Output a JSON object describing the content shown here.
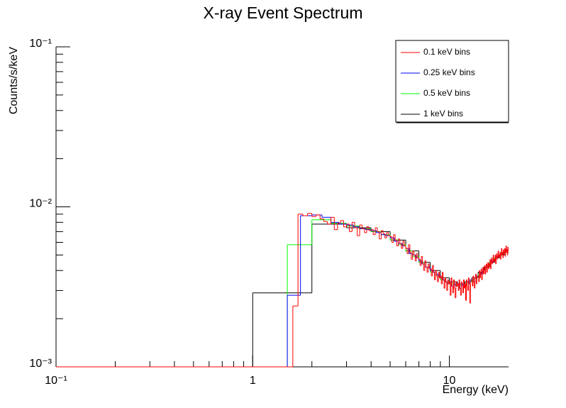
{
  "chart_data": {
    "type": "histogram",
    "title": "X-ray Event Spectrum",
    "x_label": "Energy (keV)",
    "y_label": "Counts/s/keV",
    "xlog": true,
    "ylog": true,
    "legend": "top-right",
    "xlim": [
      0.1,
      20
    ],
    "ylim": [
      0.001,
      0.1
    ],
    "xticks": [
      {
        "value": 0.1,
        "label": "10⁻¹"
      },
      1,
      10
    ],
    "yticks": [
      {
        "value": 0.001,
        "label": "10⁻³"
      },
      {
        "value": 0.01,
        "label": "10⁻²"
      },
      {
        "value": 0.1,
        "label": "10⁻¹"
      }
    ],
    "xminorticks": [
      0.2,
      0.3,
      0.4,
      0.5,
      0.6,
      0.7,
      0.8,
      0.9,
      2,
      3,
      4,
      5,
      6,
      7,
      8,
      9
    ],
    "yminorticks": [
      0.002,
      0.003,
      0.004,
      0.005,
      0.006,
      0.007,
      0.008,
      0.009,
      0.02,
      0.03,
      0.04,
      0.05,
      0.06,
      0.07,
      0.08,
      0.09
    ],
    "series": [
      {
        "name": "0.1 keV bins",
        "color": "#ff0000",
        "bins": [
          0.1,
          1.6,
          1.7,
          1.8,
          1.9,
          2.0,
          2.1,
          2.2,
          2.3,
          2.4,
          2.5,
          2.6,
          2.7,
          2.8,
          2.9,
          3.0,
          3.1,
          3.2,
          3.3,
          3.4,
          3.5,
          3.6,
          3.7,
          3.8,
          3.9,
          4.0,
          4.1,
          4.2,
          4.3,
          4.4,
          4.5,
          4.6,
          4.7,
          4.8,
          4.9,
          5.0,
          5.1,
          5.2,
          5.3,
          5.4,
          5.5,
          5.6,
          5.7,
          5.8,
          5.9,
          6.0,
          6.1,
          6.2,
          6.3,
          6.4,
          6.5,
          6.6,
          6.7,
          6.8,
          6.9,
          7.0,
          7.1,
          7.2,
          7.3,
          7.4,
          7.5,
          7.6,
          7.7,
          7.8,
          7.9,
          8.0,
          8.1,
          8.2,
          8.3,
          8.4,
          8.5,
          8.6,
          8.7,
          8.8,
          8.9,
          9.0,
          9.1,
          9.2,
          9.3,
          9.4,
          9.5,
          9.6,
          9.7,
          9.8,
          9.9,
          10.0,
          10.1,
          10.2,
          10.3,
          10.4,
          10.5,
          10.6,
          10.7,
          10.8,
          10.9,
          11.0,
          11.1,
          11.2,
          11.3,
          11.4,
          11.5,
          11.6,
          11.7,
          11.8,
          11.9,
          12.0,
          12.1,
          12.2,
          12.3,
          12.4,
          12.5,
          12.6,
          12.7,
          12.8,
          12.9,
          13.0,
          13.1,
          13.2,
          13.3,
          13.4,
          13.5,
          13.6,
          13.7,
          13.8,
          13.9,
          14.0,
          14.1,
          14.2,
          14.3,
          14.4,
          14.5,
          14.6,
          14.7,
          14.8,
          14.9,
          15.0,
          15.1,
          15.2,
          15.3,
          15.4,
          15.5,
          15.6,
          15.7,
          15.8,
          15.9,
          16.0,
          16.1,
          16.2,
          16.3,
          16.4,
          16.5,
          16.6,
          16.7,
          16.8,
          16.9,
          17.0,
          17.1,
          17.2,
          17.3,
          17.4,
          17.5,
          17.6,
          17.7,
          17.8,
          17.9,
          18.0,
          18.1,
          18.2,
          18.3,
          18.4,
          18.5,
          18.6,
          18.7,
          18.8,
          18.9,
          19.0,
          19.1,
          19.2,
          19.3,
          19.4,
          19.5,
          19.6,
          19.7,
          19.8,
          19.9,
          20.0
        ],
        "values": [
          0,
          0.0024,
          0.009,
          0.0088,
          0.0091,
          0.0087,
          0.0089,
          0.0084,
          0.0081,
          0.0078,
          0.0086,
          0.0072,
          0.0079,
          0.0082,
          0.0075,
          0.0078,
          0.007,
          0.008,
          0.0074,
          0.0066,
          0.0077,
          0.0073,
          0.0069,
          0.0075,
          0.0071,
          0.0072,
          0.0067,
          0.0074,
          0.007,
          0.0063,
          0.0071,
          0.0068,
          0.0064,
          0.0069,
          0.0066,
          0.0065,
          0.006,
          0.0067,
          0.0062,
          0.0057,
          0.0063,
          0.0059,
          0.0055,
          0.0061,
          0.0057,
          0.0055,
          0.0051,
          0.0058,
          0.0052,
          0.0047,
          0.0053,
          0.005,
          0.0046,
          0.0051,
          0.0048,
          0.0047,
          0.0043,
          0.0049,
          0.0044,
          0.004,
          0.0046,
          0.0042,
          0.0039,
          0.0044,
          0.0041,
          0.0041,
          0.0037,
          0.0043,
          0.0039,
          0.0035,
          0.004,
          0.0037,
          0.0034,
          0.0039,
          0.0036,
          0.0037,
          0.0033,
          0.0039,
          0.0035,
          0.0031,
          0.0036,
          0.0034,
          0.003,
          0.0035,
          0.0033,
          0.0034,
          0.0028,
          0.0036,
          0.0032,
          0.0029,
          0.0035,
          0.0031,
          0.0027,
          0.0034,
          0.0032,
          0.0033,
          0.003,
          0.0035,
          0.0031,
          0.0028,
          0.0034,
          0.0032,
          0.0029,
          0.0035,
          0.0031,
          0.0033,
          0.0026,
          0.0035,
          0.0032,
          0.003,
          0.0036,
          0.0033,
          0.0025,
          0.0034,
          0.0035,
          0.0035,
          0.0032,
          0.0037,
          0.0034,
          0.0031,
          0.0036,
          0.0038,
          0.0033,
          0.0036,
          0.0037,
          0.0037,
          0.0034,
          0.004,
          0.0036,
          0.0039,
          0.0041,
          0.0035,
          0.0039,
          0.0042,
          0.0038,
          0.004,
          0.0043,
          0.0038,
          0.0042,
          0.0044,
          0.0039,
          0.0043,
          0.0045,
          0.0041,
          0.0044,
          0.0043,
          0.0047,
          0.0041,
          0.0045,
          0.0048,
          0.0044,
          0.0046,
          0.005,
          0.0045,
          0.0047,
          0.0046,
          0.005,
          0.0044,
          0.0049,
          0.0051,
          0.0047,
          0.0049,
          0.0053,
          0.0048,
          0.005,
          0.0049,
          0.0052,
          0.0047,
          0.0051,
          0.0055,
          0.005,
          0.0052,
          0.0048,
          0.0054,
          0.0051,
          0.0051,
          0.0055,
          0.0049,
          0.0053,
          0.0057,
          0.0052,
          0.0054,
          0.005,
          0.0056,
          0.0053
        ]
      },
      {
        "name": "0.25 keV bins",
        "color": "#0000ff",
        "bins": [
          0.1,
          1.5,
          1.75,
          2.0,
          2.25,
          2.5,
          2.75,
          3.0,
          3.25,
          3.5,
          3.75,
          4.0,
          4.25,
          4.5,
          4.75,
          5.0,
          5.25,
          5.5,
          5.75,
          6.0,
          6.25,
          6.5,
          6.75,
          7.0,
          7.25,
          7.5,
          7.75,
          8.0,
          8.25,
          8.5,
          8.75,
          9.0,
          9.25,
          9.5,
          9.75,
          10.0,
          10.25,
          10.5,
          10.75,
          11.0,
          11.25,
          11.5,
          11.75,
          12.0,
          12.25,
          12.5,
          12.75,
          13.0,
          13.25,
          13.5,
          13.75,
          14.0,
          14.25,
          14.5,
          14.75,
          15.0,
          15.25,
          15.5,
          15.75,
          16.0,
          16.25,
          16.5,
          16.75,
          17.0,
          17.25,
          17.5,
          17.75,
          18.0,
          18.25,
          18.5,
          18.75,
          19.0,
          19.25,
          19.5,
          19.75,
          20.0
        ],
        "values": [
          0,
          0.0028,
          0.0088,
          0.0089,
          0.0086,
          0.008,
          0.0078,
          0.0077,
          0.0075,
          0.0073,
          0.0072,
          0.0071,
          0.0069,
          0.0067,
          0.0066,
          0.0064,
          0.0061,
          0.0059,
          0.0057,
          0.0055,
          0.0051,
          0.005,
          0.0048,
          0.0046,
          0.0044,
          0.0042,
          0.0042,
          0.004,
          0.0039,
          0.0038,
          0.0037,
          0.0036,
          0.0035,
          0.0034,
          0.0033,
          0.0034,
          0.0032,
          0.0033,
          0.0032,
          0.0033,
          0.0031,
          0.0033,
          0.0032,
          0.0032,
          0.0034,
          0.0033,
          0.0035,
          0.0035,
          0.0034,
          0.0036,
          0.0037,
          0.0037,
          0.0039,
          0.0038,
          0.004,
          0.0041,
          0.0042,
          0.0043,
          0.0044,
          0.0044,
          0.0046,
          0.0045,
          0.0047,
          0.0047,
          0.0049,
          0.0048,
          0.005,
          0.005,
          0.0051,
          0.005,
          0.0052,
          0.0052,
          0.0054,
          0.0052,
          0.0054
        ]
      },
      {
        "name": "0.5 keV bins",
        "color": "#00ff00",
        "bins": [
          0.1,
          1.5,
          2.0,
          2.5,
          3.0,
          3.5,
          4.0,
          4.5,
          5.0,
          5.5,
          6.0,
          6.5,
          7.0,
          7.5,
          8.0,
          8.5,
          9.0,
          9.5,
          10.0,
          10.5,
          11.0,
          11.5,
          12.0,
          12.5,
          13.0,
          13.5,
          14.0,
          14.5,
          15.0,
          15.5,
          16.0,
          16.5,
          17.0,
          17.5,
          18.0,
          18.5,
          19.0,
          19.5,
          20.0
        ],
        "values": [
          0,
          0.0058,
          0.0083,
          0.0079,
          0.0076,
          0.0073,
          0.007,
          0.0067,
          0.0062,
          0.0058,
          0.0053,
          0.0049,
          0.0045,
          0.0042,
          0.0039,
          0.0037,
          0.0035,
          0.0034,
          0.0033,
          0.0033,
          0.0032,
          0.0033,
          0.0033,
          0.0034,
          0.0035,
          0.0036,
          0.0038,
          0.0039,
          0.0041,
          0.0043,
          0.0045,
          0.0046,
          0.0048,
          0.0049,
          0.005,
          0.0051,
          0.0052,
          0.0053
        ]
      },
      {
        "name": "1 keV bins",
        "color": "#000000",
        "bins": [
          0.1,
          1,
          2,
          3,
          4,
          5,
          6,
          7,
          8,
          9,
          10,
          11,
          12,
          13,
          14,
          15,
          16,
          17,
          18,
          19,
          20
        ],
        "values": [
          0,
          0.0029,
          0.0078,
          0.0074,
          0.007,
          0.0062,
          0.0053,
          0.0045,
          0.004,
          0.0036,
          0.0034,
          0.0033,
          0.0034,
          0.0036,
          0.0039,
          0.0042,
          0.0045,
          0.0048,
          0.005,
          0.0052
        ]
      }
    ]
  }
}
